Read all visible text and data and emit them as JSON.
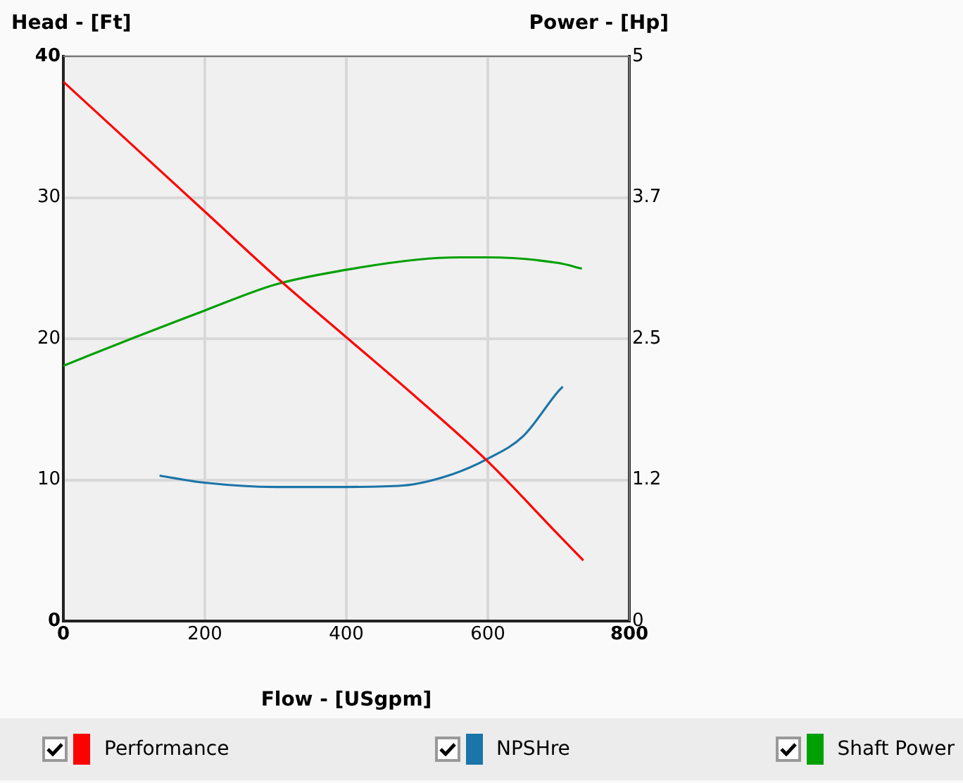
{
  "chart_data": {
    "type": "line",
    "xlabel": "Flow - [USgpm]",
    "ylabel": "Head - [Ft]",
    "y2label": "Power - [Hp]",
    "xlim": [
      0,
      800
    ],
    "xticks": [
      0,
      200,
      400,
      600,
      800
    ],
    "ylim": [
      0,
      40
    ],
    "yticks": [
      0,
      10,
      20,
      30,
      40
    ],
    "y2lim": [
      0,
      5
    ],
    "y2ticks": [
      0,
      {
        "value": 1.25,
        "label": "1.2"
      },
      2.5,
      {
        "value": 3.75,
        "label": "3.7"
      },
      5
    ],
    "grid": true,
    "legend": "bottom",
    "series": [
      {
        "name": "Performance",
        "color": "#ff0000",
        "x": [
          0,
          100,
          200,
          300,
          400,
          500,
          600,
          700,
          735
        ],
        "values": [
          38.2,
          33.6,
          29,
          24.4,
          20.1,
          15.8,
          11.3,
          6.1,
          4.3
        ]
      },
      {
        "name": "NPSHre",
        "color": "#1a75a8",
        "x": [
          136,
          200,
          300,
          400,
          480,
          550,
          600,
          650,
          700,
          706
        ],
        "values": [
          10.3,
          9.8,
          9.5,
          9.5,
          9.6,
          10.4,
          11.5,
          13.1,
          16.3,
          16.6
        ]
      },
      {
        "name": "Shaft Power",
        "color": "#00a000",
        "axis": "y2",
        "x": [
          0,
          100,
          200,
          300,
          400,
          500,
          560,
          600,
          700,
          733
        ],
        "values": [
          2.26,
          2.51,
          2.75,
          2.98,
          3.11,
          3.2,
          3.22,
          3.22,
          3.17,
          3.12
        ]
      }
    ]
  }
}
